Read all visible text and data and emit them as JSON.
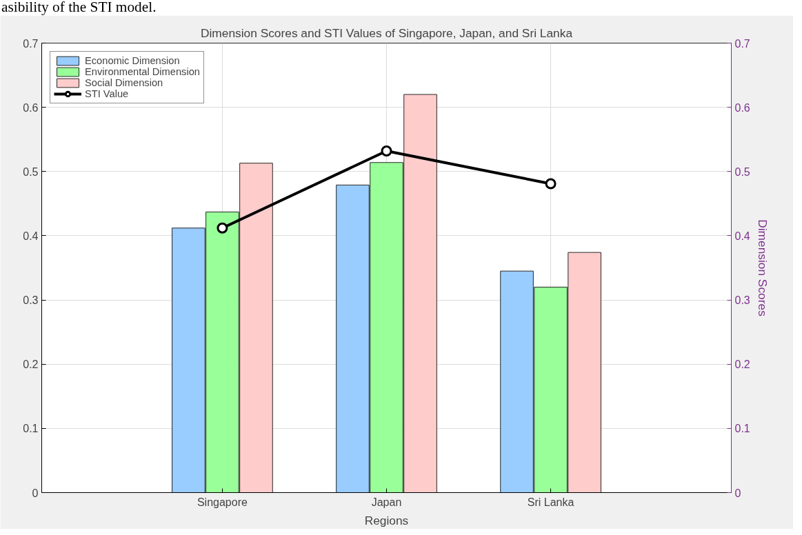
{
  "chart_data": {
    "type": "bar",
    "title": "Dimension Scores and STI Values of Singapore, Japan, and Sri Lanka",
    "xlabel": "Regions",
    "y2label": "Dimension Scores",
    "annotations": [
      "asibility of the STI model."
    ],
    "categories": [
      "Singapore",
      "Japan",
      "Sri Lanka"
    ],
    "series": [
      {
        "name": "Economic Dimension",
        "color": "#99ccff",
        "values": [
          0.412,
          0.479,
          0.345
        ]
      },
      {
        "name": "Environmental Dimension",
        "color": "#99ff99",
        "values": [
          0.437,
          0.514,
          0.32
        ]
      },
      {
        "name": "Social Dimension",
        "color": "#ffcccc",
        "values": [
          0.513,
          0.62,
          0.374
        ]
      },
      {
        "name": "STI Value",
        "type": "line",
        "color": "#000000",
        "values": [
          0.412,
          0.532,
          0.481
        ],
        "marker": "circle"
      }
    ],
    "ylim": [
      0,
      0.7
    ],
    "yticks": [
      0,
      0.1,
      0.2,
      0.3,
      0.4,
      0.5,
      0.6,
      0.7
    ],
    "y2lim": [
      0,
      0.7
    ],
    "y2ticks": [
      0,
      0.1,
      0.2,
      0.3,
      0.4,
      0.5,
      0.6,
      0.7
    ],
    "grid": true,
    "legend": "top left"
  }
}
